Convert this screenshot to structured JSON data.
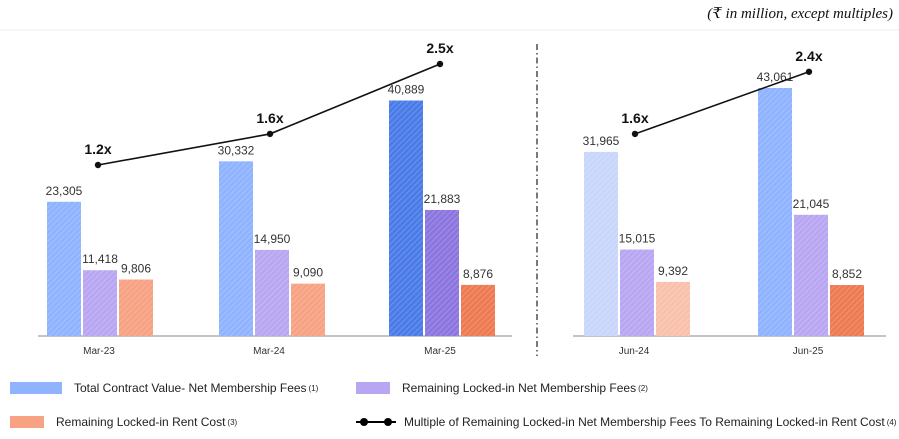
{
  "units_note": "(₹ in million, except multiples)",
  "colors": {
    "tcv": "#8fb3ff",
    "tcv_dark": "#4a7be8",
    "tcv_light": "#c9d6fb",
    "fees": "#b9a6f2",
    "fees_dark": "#8c75df",
    "rent": "#f7a283",
    "rent_dark": "#ee7a52",
    "rent_light": "#f9c1ac",
    "line": "#111111"
  },
  "chart_data": [
    {
      "type": "bar",
      "categories": [
        "Mar-23",
        "Mar-24",
        "Mar-25"
      ],
      "series": [
        {
          "name": "Total Contract Value- Net Membership Fees",
          "values": [
            23305,
            30332,
            40889
          ]
        },
        {
          "name": "Remaining Locked-in Net Membership Fees",
          "values": [
            11418,
            14950,
            21883
          ]
        },
        {
          "name": "Remaining Locked-in Rent Cost",
          "values": [
            9806,
            9090,
            8876
          ]
        }
      ],
      "value_labels": [
        [
          "23,305",
          "11,418",
          "9,806"
        ],
        [
          "30,332",
          "14,950",
          "9,090"
        ],
        [
          "40,889",
          "21,883",
          "8,876"
        ]
      ],
      "multiple": {
        "name": "Multiple of Remaining Locked-in Net Membership Fees To Remaining Locked-in Rent Cost",
        "values": [
          1.2,
          1.6,
          2.5
        ],
        "labels": [
          "1.2x",
          "1.6x",
          "2.5x"
        ]
      }
    },
    {
      "type": "bar",
      "categories": [
        "Jun-24",
        "Jun-25"
      ],
      "series": [
        {
          "name": "Total Contract Value- Net Membership Fees",
          "values": [
            31965,
            43061
          ]
        },
        {
          "name": "Remaining Locked-in Net Membership Fees",
          "values": [
            15015,
            21045
          ]
        },
        {
          "name": "Remaining Locked-in Rent Cost",
          "values": [
            9392,
            8852
          ]
        }
      ],
      "value_labels": [
        [
          "31,965",
          "15,015",
          "9,392"
        ],
        [
          "43,061",
          "21,045",
          "8,852"
        ]
      ],
      "multiple": {
        "name": "Multiple of Remaining Locked-in Net Membership Fees To Remaining Locked-in Rent Cost",
        "values": [
          1.6,
          2.4
        ],
        "labels": [
          "1.6x",
          "2.4x"
        ]
      }
    }
  ],
  "legend": {
    "tcv": {
      "label": "Total Contract Value- Net Membership Fees",
      "note": "(1)"
    },
    "fees": {
      "label": "Remaining Locked-in Net Membership Fees",
      "note": "(2)"
    },
    "rent": {
      "label": "Remaining Locked-in Rent Cost",
      "note": "(3)"
    },
    "multiple": {
      "label": "Multiple of Remaining Locked-in Net Membership Fees To Remaining Locked-in Rent Cost",
      "note": "(4)"
    }
  }
}
